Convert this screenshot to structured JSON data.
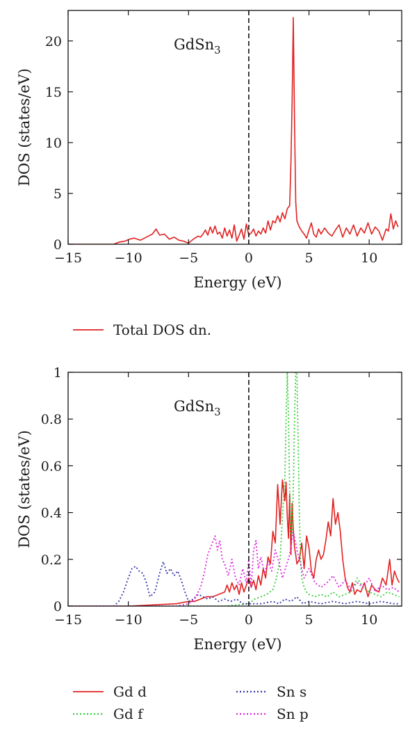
{
  "chart_data": [
    {
      "type": "line",
      "annotation": {
        "text": "GdSn",
        "subscript": "3"
      },
      "xlabel": "Energy (eV)",
      "ylabel": "DOS (states/eV)",
      "xlim": [
        -15,
        12.7
      ],
      "ylim": [
        0,
        23
      ],
      "xticks": [
        -15,
        -10,
        -5,
        0,
        5,
        10
      ],
      "yticks": [
        0,
        5,
        10,
        15,
        20
      ],
      "fermi_level": 0,
      "legend_position": "below plot",
      "series": [
        {
          "name": "Total DOS dn.",
          "color": "#e02020",
          "style": "solid",
          "x": [
            -15,
            -11.2,
            -10.8,
            -10.3,
            -9.9,
            -9.5,
            -9.0,
            -8.5,
            -8.0,
            -7.7,
            -7.4,
            -7.0,
            -6.6,
            -6.2,
            -5.8,
            -5.4,
            -5.0,
            -4.6,
            -4.2,
            -4.0,
            -3.8,
            -3.6,
            -3.4,
            -3.2,
            -3.0,
            -2.8,
            -2.6,
            -2.4,
            -2.2,
            -2.0,
            -1.8,
            -1.6,
            -1.4,
            -1.2,
            -1.0,
            -0.8,
            -0.6,
            -0.4,
            -0.2,
            0.0,
            0.2,
            0.4,
            0.6,
            0.8,
            1.0,
            1.2,
            1.4,
            1.6,
            1.8,
            2.0,
            2.2,
            2.4,
            2.6,
            2.8,
            3.0,
            3.2,
            3.4,
            3.5,
            3.6,
            3.7,
            3.8,
            3.9,
            4.0,
            4.2,
            4.4,
            4.6,
            4.8,
            5.0,
            5.2,
            5.4,
            5.6,
            5.8,
            6.0,
            6.3,
            6.6,
            6.9,
            7.2,
            7.5,
            7.8,
            8.1,
            8.4,
            8.7,
            9.0,
            9.3,
            9.6,
            9.9,
            10.2,
            10.5,
            10.8,
            11.1,
            11.4,
            11.6,
            11.8,
            12.0,
            12.2,
            12.4
          ],
          "values": [
            0,
            0,
            0.2,
            0.3,
            0.5,
            0.6,
            0.4,
            0.7,
            1.0,
            1.5,
            0.9,
            1.0,
            0.5,
            0.7,
            0.4,
            0.3,
            0.1,
            0.5,
            0.8,
            0.7,
            1.0,
            1.4,
            0.9,
            1.7,
            1.1,
            1.8,
            1.0,
            1.2,
            0.6,
            1.6,
            0.8,
            1.4,
            0.6,
            1.9,
            0.3,
            0.9,
            1.5,
            0.5,
            2.0,
            0.9,
            1.1,
            1.5,
            0.8,
            1.3,
            1.0,
            1.6,
            1.1,
            2.3,
            1.4,
            2.3,
            2.1,
            2.8,
            2.2,
            3.1,
            2.5,
            3.5,
            3.8,
            8.0,
            14.0,
            22.3,
            12.0,
            4.2,
            2.3,
            1.7,
            1.3,
            1.0,
            0.6,
            1.4,
            2.1,
            1.0,
            0.7,
            1.5,
            1.0,
            1.6,
            1.1,
            0.8,
            1.4,
            1.9,
            0.7,
            1.6,
            1.0,
            1.9,
            0.8,
            1.6,
            1.1,
            2.1,
            1.0,
            1.7,
            1.3,
            0.4,
            1.5,
            1.3,
            3.0,
            1.5,
            2.3,
            1.7
          ]
        }
      ]
    },
    {
      "type": "line",
      "annotation": {
        "text": "GdSn",
        "subscript": "3"
      },
      "xlabel": "Energy (eV)",
      "ylabel": "DOS (states/eV)",
      "xlim": [
        -15,
        12.7
      ],
      "ylim": [
        0,
        1
      ],
      "xticks": [
        -15,
        -10,
        -5,
        0,
        5,
        10
      ],
      "yticks": [
        0,
        0.2,
        0.4,
        0.6,
        0.8,
        1
      ],
      "fermi_level": 0,
      "legend_position": "below plot",
      "series": [
        {
          "name": "Gd d",
          "color": "#e02020",
          "style": "solid",
          "x": [
            -15,
            -10,
            -8,
            -6,
            -5,
            -4.5,
            -4,
            -3.5,
            -3,
            -2.5,
            -2,
            -1.8,
            -1.6,
            -1.4,
            -1.2,
            -1.0,
            -0.8,
            -0.6,
            -0.4,
            -0.2,
            0.0,
            0.2,
            0.4,
            0.6,
            0.8,
            1.0,
            1.2,
            1.4,
            1.6,
            1.8,
            2.0,
            2.2,
            2.4,
            2.6,
            2.8,
            3.0,
            3.1,
            3.2,
            3.3,
            3.4,
            3.5,
            3.6,
            3.7,
            3.8,
            3.9,
            4.0,
            4.2,
            4.4,
            4.6,
            4.8,
            5.0,
            5.2,
            5.4,
            5.6,
            5.8,
            6.0,
            6.2,
            6.4,
            6.6,
            6.8,
            7.0,
            7.2,
            7.4,
            7.6,
            7.8,
            8.0,
            8.2,
            8.4,
            8.6,
            8.8,
            9.0,
            9.3,
            9.6,
            9.9,
            10.2,
            10.5,
            10.8,
            11.1,
            11.4,
            11.7,
            11.9,
            12.1,
            12.3,
            12.5
          ],
          "values": [
            0,
            0,
            0.005,
            0.01,
            0.02,
            0.02,
            0.03,
            0.04,
            0.04,
            0.05,
            0.06,
            0.09,
            0.06,
            0.1,
            0.07,
            0.09,
            0.05,
            0.1,
            0.06,
            0.09,
            0.12,
            0.08,
            0.11,
            0.07,
            0.13,
            0.09,
            0.16,
            0.12,
            0.21,
            0.18,
            0.32,
            0.27,
            0.52,
            0.35,
            0.54,
            0.45,
            0.53,
            0.38,
            0.29,
            0.48,
            0.22,
            0.44,
            0.33,
            0.25,
            0.22,
            0.18,
            0.2,
            0.27,
            0.16,
            0.3,
            0.25,
            0.15,
            0.12,
            0.2,
            0.24,
            0.2,
            0.22,
            0.28,
            0.36,
            0.3,
            0.46,
            0.35,
            0.4,
            0.32,
            0.2,
            0.12,
            0.08,
            0.06,
            0.1,
            0.05,
            0.07,
            0.06,
            0.1,
            0.04,
            0.09,
            0.07,
            0.06,
            0.12,
            0.09,
            0.2,
            0.09,
            0.15,
            0.12,
            0.1
          ]
        },
        {
          "name": "Gd f",
          "color": "#33cc33",
          "style": "dotted",
          "x": [
            -15,
            -2,
            -1,
            0,
            0.5,
            1.0,
            1.5,
            2.0,
            2.3,
            2.6,
            2.8,
            3.0,
            3.1,
            3.2,
            3.3,
            3.4,
            3.5,
            3.6,
            3.7,
            3.8,
            3.9,
            4.0,
            4.1,
            4.2,
            4.3,
            4.4,
            4.6,
            4.8,
            5.0,
            5.5,
            6.0,
            6.5,
            7.0,
            7.5,
            8.0,
            8.5,
            9.0,
            9.5,
            10.0,
            10.5,
            11.0,
            11.5,
            12.0,
            12.5
          ],
          "values": [
            0,
            0,
            0.005,
            0.01,
            0.03,
            0.04,
            0.05,
            0.07,
            0.12,
            0.2,
            0.38,
            0.55,
            0.8,
            1.0,
            0.8,
            0.5,
            0.3,
            0.3,
            0.5,
            0.8,
            1.0,
            1.0,
            0.7,
            0.4,
            0.2,
            0.12,
            0.08,
            0.06,
            0.05,
            0.04,
            0.05,
            0.04,
            0.06,
            0.04,
            0.05,
            0.06,
            0.12,
            0.08,
            0.06,
            0.05,
            0.04,
            0.06,
            0.05,
            0.04
          ]
        },
        {
          "name": "Sn s",
          "color": "#3333aa",
          "style": "dotted",
          "x": [
            -15,
            -11.2,
            -10.8,
            -10.4,
            -10.0,
            -9.7,
            -9.4,
            -9.1,
            -8.8,
            -8.5,
            -8.2,
            -7.8,
            -7.4,
            -7.1,
            -6.8,
            -6.5,
            -6.2,
            -5.9,
            -5.6,
            -5.3,
            -5.0,
            -4.6,
            -4.2,
            -3.8,
            -3.4,
            -3.0,
            -2.5,
            -2.0,
            -1.5,
            -1.0,
            -0.5,
            0,
            1,
            2,
            2.5,
            3,
            3.5,
            4,
            4.5,
            5,
            6,
            7,
            8,
            9,
            10,
            11,
            12,
            12.5
          ],
          "values": [
            0,
            0,
            0.02,
            0.06,
            0.12,
            0.16,
            0.17,
            0.15,
            0.14,
            0.1,
            0.04,
            0.06,
            0.14,
            0.19,
            0.14,
            0.16,
            0.13,
            0.15,
            0.11,
            0.06,
            0.02,
            0.03,
            0.05,
            0.04,
            0.03,
            0.04,
            0.02,
            0.03,
            0.02,
            0.03,
            0.01,
            0.01,
            0.01,
            0.02,
            0.01,
            0.03,
            0.02,
            0.04,
            0.01,
            0.02,
            0.01,
            0.02,
            0.01,
            0.02,
            0.01,
            0.02,
            0.01,
            0.01
          ]
        },
        {
          "name": "Sn p",
          "color": "#dd22dd",
          "style": "dotted",
          "x": [
            -15,
            -6,
            -5,
            -4.5,
            -4.0,
            -3.7,
            -3.4,
            -3.1,
            -2.8,
            -2.6,
            -2.4,
            -2.2,
            -2.0,
            -1.7,
            -1.4,
            -1.1,
            -0.8,
            -0.5,
            -0.2,
            0.0,
            0.2,
            0.4,
            0.6,
            0.8,
            1.0,
            1.3,
            1.6,
            1.9,
            2.2,
            2.5,
            2.8,
            3.1,
            3.4,
            3.7,
            4.0,
            4.3,
            4.6,
            5.0,
            5.5,
            6.0,
            6.5,
            7.0,
            7.5,
            8.0,
            8.5,
            9.0,
            9.5,
            10.0,
            10.5,
            11.0,
            11.5,
            12.0,
            12.5
          ],
          "values": [
            0,
            0,
            0.01,
            0.03,
            0.08,
            0.14,
            0.22,
            0.26,
            0.3,
            0.24,
            0.28,
            0.2,
            0.18,
            0.13,
            0.2,
            0.12,
            0.09,
            0.16,
            0.1,
            0.2,
            0.08,
            0.24,
            0.28,
            0.16,
            0.21,
            0.14,
            0.19,
            0.15,
            0.24,
            0.19,
            0.12,
            0.17,
            0.22,
            0.32,
            0.24,
            0.18,
            0.12,
            0.16,
            0.1,
            0.08,
            0.1,
            0.13,
            0.08,
            0.11,
            0.07,
            0.1,
            0.08,
            0.12,
            0.06,
            0.09,
            0.07,
            0.08,
            0.06
          ]
        }
      ]
    }
  ]
}
